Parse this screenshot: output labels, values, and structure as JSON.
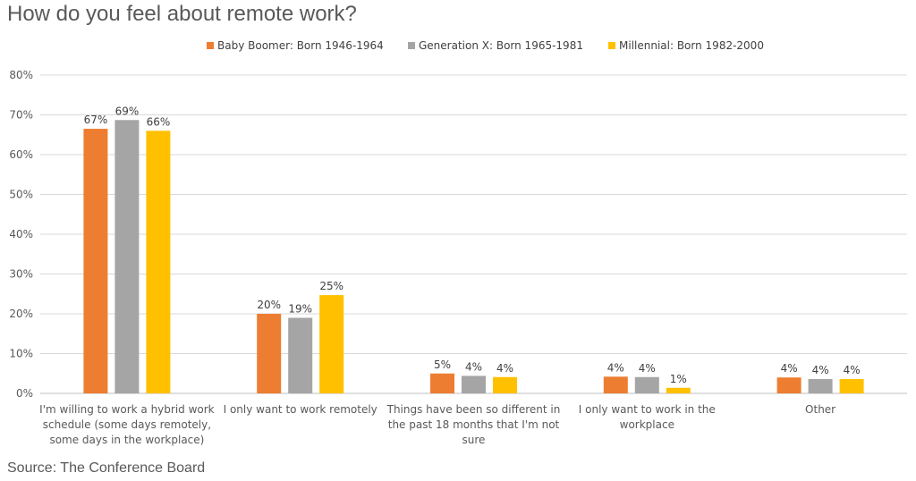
{
  "title": "How do you feel about remote work?",
  "source": "Source: The Conference Board",
  "colors": [
    "#ED7D31",
    "#A5A5A5",
    "#FFC000"
  ],
  "chart_data": {
    "type": "bar",
    "title": "How do you feel about remote work?",
    "categories": [
      [
        "I'm willing to work a hybrid work",
        "schedule (some days remotely,",
        "some days in the workplace)"
      ],
      [
        "I only want to work remotely"
      ],
      [
        "Things have been so different in",
        "the past 18 months that I'm not",
        "sure"
      ],
      [
        "I only want to work in the",
        "workplace"
      ],
      [
        "Other"
      ]
    ],
    "series": [
      {
        "name": "Baby Boomer: Born 1946-1964",
        "values": [
          66.5,
          20.0,
          5.0,
          4.2,
          4.0
        ],
        "labels": [
          "67%",
          "20%",
          "5%",
          "4%",
          "4%"
        ]
      },
      {
        "name": "Generation X: Born 1965-1981",
        "values": [
          68.7,
          19.0,
          4.4,
          4.1,
          3.6
        ],
        "labels": [
          "69%",
          "19%",
          "4%",
          "4%",
          "4%"
        ]
      },
      {
        "name": "Millennial: Born 1982-2000",
        "values": [
          66.0,
          24.7,
          4.1,
          1.4,
          3.6
        ],
        "labels": [
          "66%",
          "25%",
          "4%",
          "1%",
          "4%"
        ]
      }
    ],
    "ylim": [
      0,
      80
    ],
    "yticks": [
      "0%",
      "10%",
      "20%",
      "30%",
      "40%",
      "50%",
      "60%",
      "70%",
      "80%"
    ],
    "grid": true,
    "legend": "top"
  }
}
